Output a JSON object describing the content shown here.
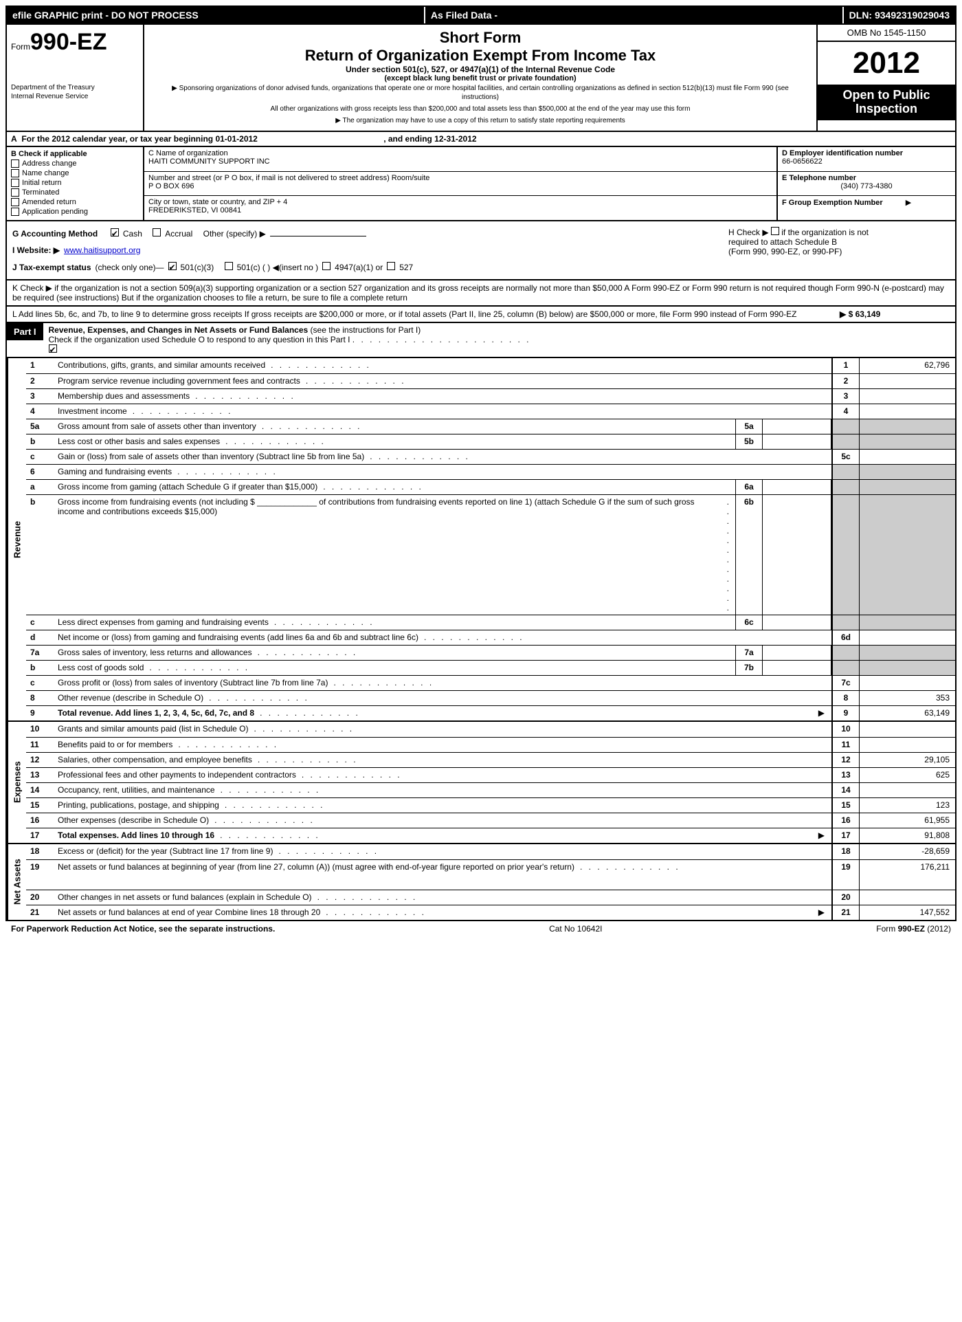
{
  "topbar": {
    "left": "efile GRAPHIC print - DO NOT PROCESS",
    "mid": "As Filed Data -",
    "right": "DLN: 93492319029043"
  },
  "header": {
    "form_prefix": "Form",
    "form_number": "990-EZ",
    "dept1": "Department of the Treasury",
    "dept2": "Internal Revenue Service",
    "short_form": "Short Form",
    "title": "Return of Organization Exempt From Income Tax",
    "sub1": "Under section 501(c), 527, or 4947(a)(1) of the Internal Revenue Code",
    "sub2": "(except black lung benefit trust or private foundation)",
    "fine1": "▶ Sponsoring organizations of donor advised funds, organizations that operate one or more hospital facilities, and certain controlling organizations as defined in section 512(b)(13) must file Form 990 (see instructions)",
    "fine2": "All other organizations with gross receipts less than $200,000 and total assets less than $500,000 at the end of the year may use this form",
    "fine3": "▶ The organization may have to use a copy of this return to satisfy state reporting requirements",
    "omb": "OMB No 1545-1150",
    "year": "2012",
    "open1": "Open to Public",
    "open2": "Inspection"
  },
  "rowA": {
    "prefix": "A",
    "text": "For the 2012 calendar year, or tax year beginning 01-01-2012",
    "mid": ", and ending 12-31-2012"
  },
  "colB": {
    "header": "B  Check if applicable",
    "items": [
      "Address change",
      "Name change",
      "Initial return",
      "Terminated",
      "Amended return",
      "Application pending"
    ]
  },
  "colC": {
    "label_name": "C Name of organization",
    "org_name": "HAITI COMMUNITY SUPPORT INC",
    "label_street": "Number and street (or P O box, if mail is not delivered to street address) Room/suite",
    "street": "P O BOX 696",
    "label_city": "City or town, state or country, and ZIP + 4",
    "city": "FREDERIKSTED, VI  00841"
  },
  "colD": {
    "label_ein": "D Employer identification number",
    "ein": "66-0656622",
    "label_phone": "E Telephone number",
    "phone": "(340) 773-4380",
    "label_group": "F Group Exemption Number",
    "arrow": "▶"
  },
  "rowG": {
    "label": "G Accounting Method",
    "cash": "Cash",
    "accrual": "Accrual",
    "other": "Other (specify) ▶"
  },
  "rowH": {
    "line1": "H  Check ▶",
    "line1b": "if the organization is not",
    "line2": "required to attach Schedule B",
    "line3": "(Form 990, 990-EZ, or 990-PF)"
  },
  "rowI": {
    "label": "I Website: ▶",
    "url": "www.haitisupport.org"
  },
  "rowJ": {
    "label": "J Tax-exempt status",
    "suffix": "(check only one)—",
    "o1": "501(c)(3)",
    "o2": "501(c) (   ) ◀(insert no )",
    "o3": "4947(a)(1) or",
    "o4": "527"
  },
  "rowK": {
    "text": "K Check ▶     if the organization is not a section 509(a)(3) supporting organization or a section 527 organization and its gross receipts are normally not more than $50,000  A Form 990-EZ or Form 990 return is not required though Form 990-N (e-postcard) may be required (see instructions)  But if the organization chooses to file a return, be sure to file a complete return"
  },
  "rowL": {
    "text": "L Add lines 5b, 6c, and 7b, to line 9 to determine gross receipts  If gross receipts are $200,000 or more, or if total assets (Part II, line 25, column (B) below) are $500,000 or more, file Form 990 instead of Form 990-EZ",
    "amount": "▶ $ 63,149"
  },
  "part1": {
    "label": "Part I",
    "title": "Revenue, Expenses, and Changes in Net Assets or Fund Balances",
    "note": "(see the instructions for Part I)",
    "check": "Check if the organization used Schedule O to respond to any question in this Part I"
  },
  "sections": {
    "revenue": "Revenue",
    "expenses": "Expenses",
    "netassets": "Net Assets"
  },
  "lines": [
    {
      "n": "1",
      "desc": "Contributions, gifts, grants, and similar amounts received",
      "rn": "1",
      "amt": "62,796"
    },
    {
      "n": "2",
      "desc": "Program service revenue including government fees and contracts",
      "rn": "2",
      "amt": ""
    },
    {
      "n": "3",
      "desc": "Membership dues and assessments",
      "rn": "3",
      "amt": ""
    },
    {
      "n": "4",
      "desc": "Investment income",
      "rn": "4",
      "amt": ""
    },
    {
      "n": "5a",
      "desc": "Gross amount from sale of assets other than inventory",
      "mini": "5a",
      "rn": "",
      "amt": "",
      "shaded": true
    },
    {
      "n": "b",
      "desc": "Less  cost or other basis and sales expenses",
      "mini": "5b",
      "rn": "",
      "amt": "",
      "shaded": true
    },
    {
      "n": "c",
      "desc": "Gain or (loss) from sale of assets other than inventory (Subtract line 5b from line 5a)",
      "rn": "5c",
      "amt": ""
    },
    {
      "n": "6",
      "desc": "Gaming and fundraising events",
      "rn": "",
      "amt": "",
      "shaded": true
    },
    {
      "n": "a",
      "desc": "Gross income from gaming (attach Schedule G if greater than $15,000)",
      "mini": "6a",
      "rn": "",
      "amt": "",
      "shaded": true
    },
    {
      "n": "b",
      "desc": "Gross income from fundraising events (not including $ _____________ of contributions from fundraising events reported on line 1) (attach Schedule G if the sum of such gross income and contributions exceeds $15,000)",
      "mini": "6b",
      "rn": "",
      "amt": "",
      "shaded": true,
      "tall": true
    },
    {
      "n": "c",
      "desc": "Less  direct expenses from gaming and fundraising events",
      "mini": "6c",
      "rn": "",
      "amt": "",
      "shaded": true
    },
    {
      "n": "d",
      "desc": "Net income or (loss) from gaming and fundraising events (add lines 6a and 6b and subtract line 6c)",
      "rn": "6d",
      "amt": ""
    },
    {
      "n": "7a",
      "desc": "Gross sales of inventory, less returns and allowances",
      "mini": "7a",
      "rn": "",
      "amt": "",
      "shaded": true
    },
    {
      "n": "b",
      "desc": "Less  cost of goods sold",
      "mini": "7b",
      "rn": "",
      "amt": "",
      "shaded": true
    },
    {
      "n": "c",
      "desc": "Gross profit or (loss) from sales of inventory (Subtract line 7b from line 7a)",
      "rn": "7c",
      "amt": ""
    },
    {
      "n": "8",
      "desc": "Other revenue (describe in Schedule O)",
      "rn": "8",
      "amt": "353"
    },
    {
      "n": "9",
      "desc": "Total revenue. Add lines 1, 2, 3, 4, 5c, 6d, 7c, and 8",
      "rn": "9",
      "amt": "63,149",
      "bold": true,
      "arrow": true
    }
  ],
  "exp_lines": [
    {
      "n": "10",
      "desc": "Grants and similar amounts paid (list in Schedule O)",
      "rn": "10",
      "amt": ""
    },
    {
      "n": "11",
      "desc": "Benefits paid to or for members",
      "rn": "11",
      "amt": ""
    },
    {
      "n": "12",
      "desc": "Salaries, other compensation, and employee benefits",
      "rn": "12",
      "amt": "29,105"
    },
    {
      "n": "13",
      "desc": "Professional fees and other payments to independent contractors",
      "rn": "13",
      "amt": "625"
    },
    {
      "n": "14",
      "desc": "Occupancy, rent, utilities, and maintenance",
      "rn": "14",
      "amt": ""
    },
    {
      "n": "15",
      "desc": "Printing, publications, postage, and shipping",
      "rn": "15",
      "amt": "123"
    },
    {
      "n": "16",
      "desc": "Other expenses (describe in Schedule O)",
      "rn": "16",
      "amt": "61,955"
    },
    {
      "n": "17",
      "desc": "Total expenses. Add lines 10 through 16",
      "rn": "17",
      "amt": "91,808",
      "bold": true,
      "arrow": true
    }
  ],
  "net_lines": [
    {
      "n": "18",
      "desc": "Excess or (deficit) for the year (Subtract line 17 from line 9)",
      "rn": "18",
      "amt": "-28,659"
    },
    {
      "n": "19",
      "desc": "Net assets or fund balances at beginning of year (from line 27, column (A)) (must agree with end-of-year figure reported on prior year's return)",
      "rn": "19",
      "amt": "176,211",
      "tall": true
    },
    {
      "n": "20",
      "desc": "Other changes in net assets or fund balances (explain in Schedule O)",
      "rn": "20",
      "amt": ""
    },
    {
      "n": "21",
      "desc": "Net assets or fund balances at end of year  Combine lines 18 through 20",
      "rn": "21",
      "amt": "147,552",
      "arrow": true
    }
  ],
  "footer": {
    "left": "For Paperwork Reduction Act Notice, see the separate instructions.",
    "mid": "Cat No 10642I",
    "right": "Form 990-EZ (2012)"
  }
}
